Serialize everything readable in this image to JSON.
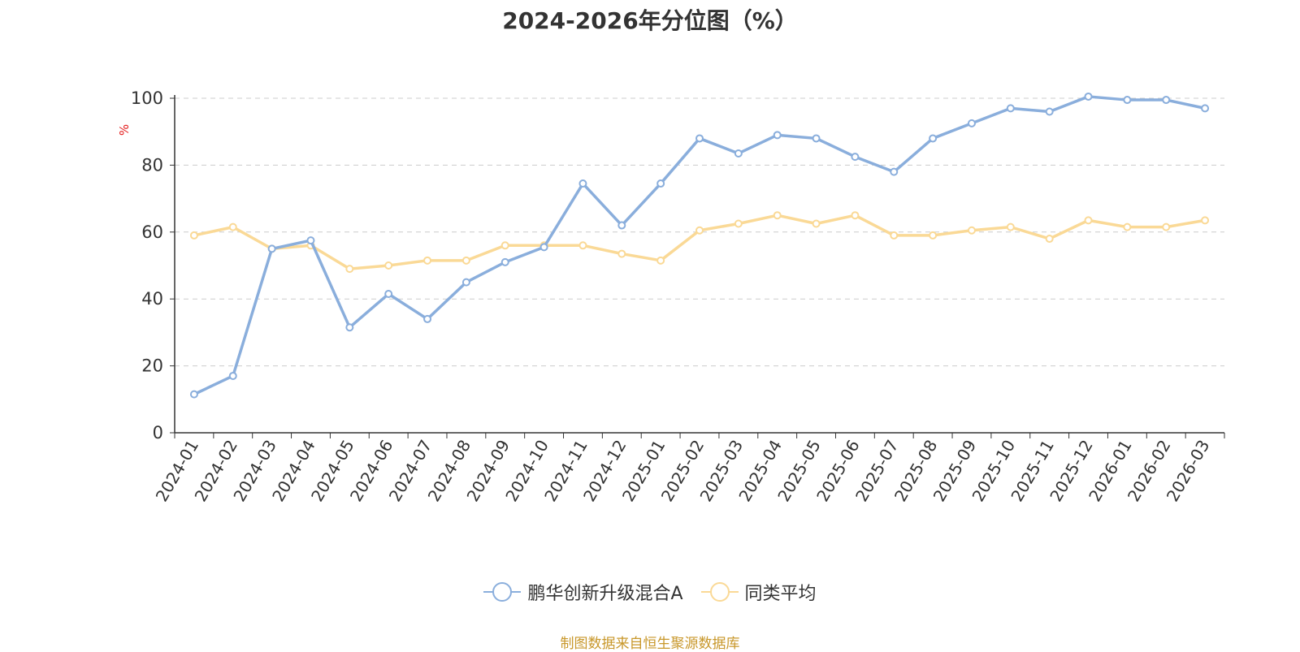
{
  "title": "2024-2026年分位图（%）",
  "source": "制图数据来自恒生聚源数据库",
  "colors": {
    "series1": "#8aaedc",
    "series2": "#fad996",
    "source_text": "#c8972a",
    "ylabel": "#e31c1c",
    "grid": "#cccccc",
    "axis": "#333333"
  },
  "chart_data": {
    "type": "line",
    "title": "2024-2026年分位图（%）",
    "xlabel": "",
    "ylabel": "%",
    "ylim": [
      0,
      100
    ],
    "yticks": [
      0,
      20,
      40,
      60,
      80,
      100
    ],
    "grid": true,
    "legend_position": "bottom",
    "categories": [
      "2024-01",
      "2024-02",
      "2024-03",
      "2024-04",
      "2024-05",
      "2024-06",
      "2024-07",
      "2024-08",
      "2024-09",
      "2024-10",
      "2024-11",
      "2024-12",
      "2025-01",
      "2025-02",
      "2025-03",
      "2025-04",
      "2025-05",
      "2025-06",
      "2025-07",
      "2025-08",
      "2025-09",
      "2025-10",
      "2025-11",
      "2025-12",
      "2026-01",
      "2026-02",
      "2026-03"
    ],
    "series": [
      {
        "name": "鹏华创新升级混合A",
        "values": [
          11.5,
          17,
          55,
          57.5,
          31.5,
          41.5,
          34,
          45,
          51,
          55.5,
          74.5,
          62,
          74.5,
          88,
          83.5,
          89,
          88,
          82.5,
          78,
          88,
          92.5,
          97,
          96,
          100.5,
          99.5,
          99.5,
          97
        ]
      },
      {
        "name": "同类平均",
        "values": [
          59,
          61.5,
          55,
          56,
          49,
          50,
          51.5,
          51.5,
          56,
          56,
          56,
          53.5,
          51.5,
          60.5,
          62.5,
          65,
          62.5,
          65,
          59,
          59,
          60.5,
          61.5,
          58,
          63.5,
          61.5,
          61.5,
          63.5
        ]
      }
    ]
  }
}
